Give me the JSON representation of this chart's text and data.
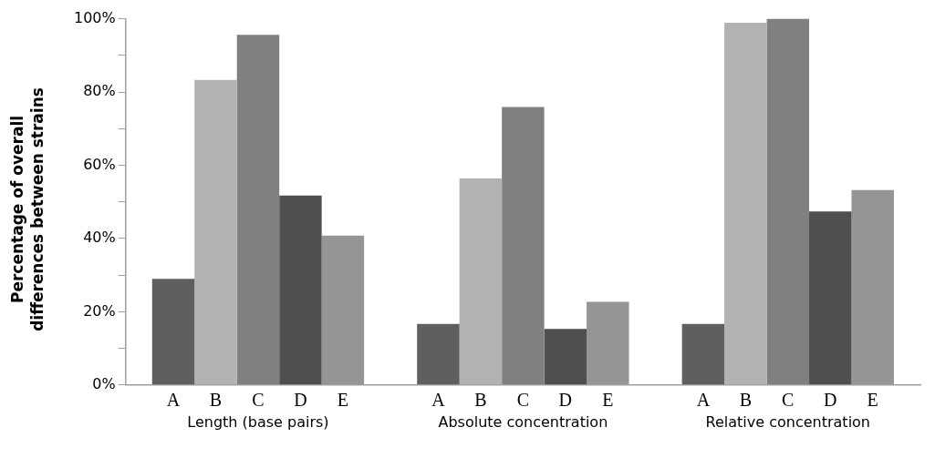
{
  "chart_data": {
    "type": "bar",
    "ylabel": "Percentage of overall differences between strains",
    "categories": [
      "Length (base pairs)",
      "Absolute concentration",
      "Relative concentration"
    ],
    "series": [
      {
        "name": "A",
        "color": "#5f5f5f",
        "values": [
          29.0,
          16.7,
          16.7
        ]
      },
      {
        "name": "B",
        "color": "#b2b2b2",
        "values": [
          83.3,
          56.4,
          98.9
        ]
      },
      {
        "name": "C",
        "color": "#808080",
        "values": [
          95.6,
          75.9,
          100
        ]
      },
      {
        "name": "D",
        "color": "#4f4f4f",
        "values": [
          51.7,
          15.3,
          47.4
        ]
      },
      {
        "name": "E",
        "color": "#959595",
        "values": [
          40.8,
          22.7,
          53.2
        ]
      }
    ],
    "ylim": [
      0,
      100
    ],
    "yticks": [
      {
        "value": 0,
        "label": "0%"
      },
      {
        "value": 10,
        "label": null
      },
      {
        "value": 20,
        "label": "20%"
      },
      {
        "value": 30,
        "label": null
      },
      {
        "value": 40,
        "label": "40%"
      },
      {
        "value": 50,
        "label": null
      },
      {
        "value": 60,
        "label": "60%"
      },
      {
        "value": 70,
        "label": null
      },
      {
        "value": 80,
        "label": "80%"
      },
      {
        "value": 90,
        "label": null
      },
      {
        "value": 100,
        "label": "100%"
      }
    ],
    "grid": false,
    "legend": false
  }
}
